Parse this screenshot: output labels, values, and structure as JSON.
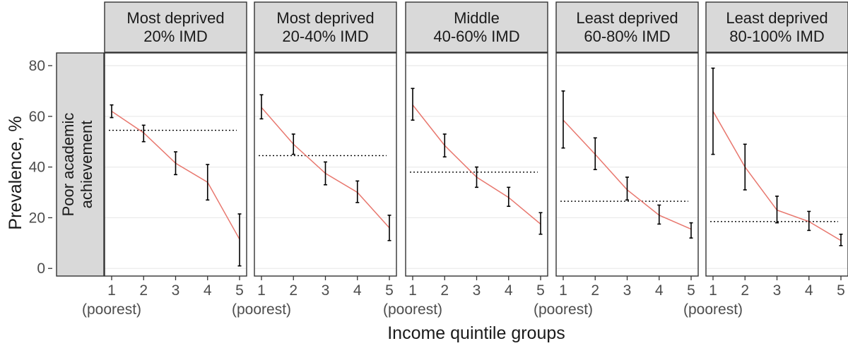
{
  "chart_data": {
    "type": "line",
    "ylabel": "Prevalence, %",
    "xlabel": "Income quintile groups",
    "row_strip": [
      "Poor academic",
      "achievement"
    ],
    "y_ticks": [
      0,
      20,
      40,
      60,
      80
    ],
    "ylim": [
      -3,
      85
    ],
    "x": [
      1,
      2,
      3,
      4,
      5
    ],
    "x_tick_labels": [
      "1",
      "2",
      "3",
      "4",
      "5"
    ],
    "x_first_sublabel": "(poorest)",
    "grid": true,
    "colors": {
      "line": "#e8776e",
      "errorbar": "#000000",
      "reference": "#000000",
      "strip_fill": "#d9d9d9",
      "grid": "#ebebeb"
    },
    "panels": [
      {
        "strip": [
          "Most deprived",
          "20% IMD"
        ],
        "values": [
          62,
          53.5,
          41.5,
          34,
          11.5
        ],
        "lower": [
          59.5,
          50,
          37,
          27,
          1
        ],
        "upper": [
          64.5,
          56.5,
          46,
          41,
          21.5
        ],
        "reference": 54.5
      },
      {
        "strip": [
          "Most deprived",
          "20-40% IMD"
        ],
        "values": [
          63.5,
          49,
          37.5,
          30,
          16
        ],
        "lower": [
          59,
          45,
          33,
          26,
          11
        ],
        "upper": [
          68.5,
          53,
          42,
          34.5,
          21
        ],
        "reference": 44.5
      },
      {
        "strip": [
          "Middle",
          "40-60% IMD"
        ],
        "values": [
          64.5,
          48.5,
          36,
          28,
          17.5
        ],
        "lower": [
          58.5,
          44,
          32,
          24.5,
          13.5
        ],
        "upper": [
          71,
          53,
          40,
          32,
          22
        ],
        "reference": 38
      },
      {
        "strip": [
          "Least deprived",
          "60-80% IMD"
        ],
        "values": [
          58.5,
          45,
          31,
          21,
          15.5
        ],
        "lower": [
          47.5,
          39,
          27,
          17.5,
          12
        ],
        "upper": [
          70,
          51.5,
          36,
          25,
          18
        ],
        "reference": 26.5
      },
      {
        "strip": [
          "Least deprived",
          "80-100% IMD"
        ],
        "values": [
          62,
          40,
          23,
          18.5,
          11
        ],
        "lower": [
          45,
          31,
          18,
          15,
          9
        ],
        "upper": [
          79,
          49,
          28.5,
          22.5,
          13.5
        ],
        "reference": 18.5
      }
    ]
  }
}
